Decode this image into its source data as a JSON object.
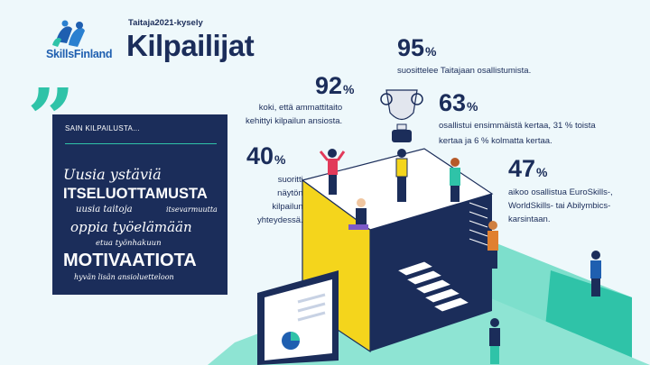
{
  "brand": {
    "logo_text": "SkillsFinland"
  },
  "header": {
    "subtitle": "Taitaja2021-kysely",
    "title": "Kilpailijat"
  },
  "quote_mark": "”",
  "panel": {
    "heading": "SAIN KILPAILUSTA...",
    "lines": [
      "Uusia ystäviä",
      "ITSELUOTTAMUSTA",
      "uusia taitoja",
      "itsevarmuutta",
      "oppia työelämään",
      "etua työnhakuun",
      "MOTIVAATIOTA",
      "hyvän lisän ansioluetteloon"
    ]
  },
  "stats": [
    {
      "value": "95",
      "unit": "%",
      "text": [
        "suosittelee Taitajaan osallistumista."
      ]
    },
    {
      "value": "92",
      "unit": "%",
      "text": [
        "koki, että ammattitaito",
        "kehittyi kilpailun ansiosta."
      ]
    },
    {
      "value": "63",
      "unit": "%",
      "text": [
        "osallistui ensimmäistä kertaa, 31 % toista",
        "kertaa ja 6 % kolmatta kertaa."
      ]
    },
    {
      "value": "40",
      "unit": "%",
      "text": [
        "suoritti",
        "näytön",
        "kilpailun",
        "yhteydessä."
      ]
    },
    {
      "value": "47",
      "unit": "%",
      "text": [
        "aikoo osallistua EuroSkills-,",
        "WorldSkills- tai Abilymbics-",
        "karsintaan."
      ]
    }
  ],
  "colors": {
    "navy": "#1b2d5a",
    "turquoise": "#2fc3a8",
    "yellow": "#f4d51c",
    "background": "#eef8fb"
  }
}
